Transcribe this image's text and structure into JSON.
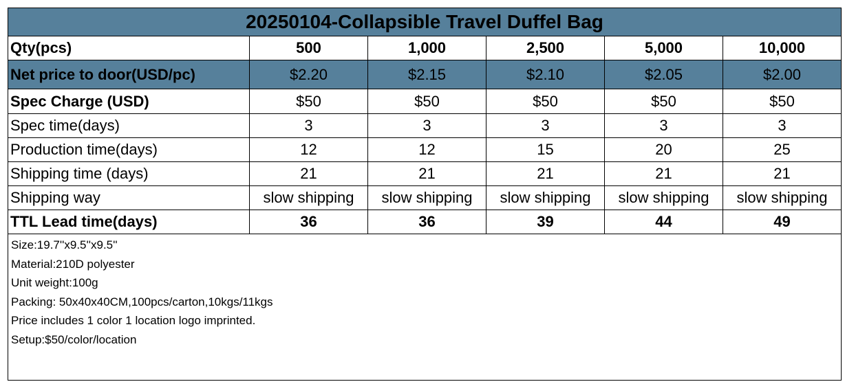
{
  "title": "20250104-Collapsible Travel Duffel Bag",
  "columns": [
    "500",
    "1,000",
    "2,500",
    "5,000",
    "10,000"
  ],
  "rows": [
    {
      "label": "Qty(pcs)",
      "values": [
        "500",
        "1,000",
        "2,500",
        "5,000",
        "10,000"
      ]
    },
    {
      "label": "Net price to door(USD/pc)",
      "values": [
        "$2.20",
        "$2.15",
        "$2.10",
        "$2.05",
        "$2.00"
      ]
    },
    {
      "label": "Spec Charge (USD)",
      "values": [
        "$50",
        "$50",
        "$50",
        "$50",
        "$50"
      ]
    },
    {
      "label": "Spec time(days)",
      "values": [
        "3",
        "3",
        "3",
        "3",
        "3"
      ]
    },
    {
      "label": "Production time(days)",
      "values": [
        "12",
        "12",
        "15",
        "20",
        "25"
      ]
    },
    {
      "label": "Shipping time (days)",
      "values": [
        "21",
        "21",
        "21",
        "21",
        "21"
      ]
    },
    {
      "label": "Shipping way",
      "values": [
        "slow shipping",
        "slow shipping",
        "slow shipping",
        "slow shipping",
        "slow shipping"
      ]
    },
    {
      "label": "TTL Lead time(days)",
      "values": [
        "36",
        "36",
        "39",
        "44",
        "49"
      ]
    }
  ],
  "notes": [
    "Size:19.7''x9.5''x9.5''",
    "Material:210D polyester",
    "Unit weight:100g",
    "Packing: 50x40x40CM,100pcs/carton,10kgs/11kgs",
    "Price includes 1 color 1 location logo imprinted.",
    "Setup:$50/color/location"
  ],
  "colors": {
    "header_fill": "#56809b",
    "border": "#000000",
    "background": "#ffffff"
  }
}
